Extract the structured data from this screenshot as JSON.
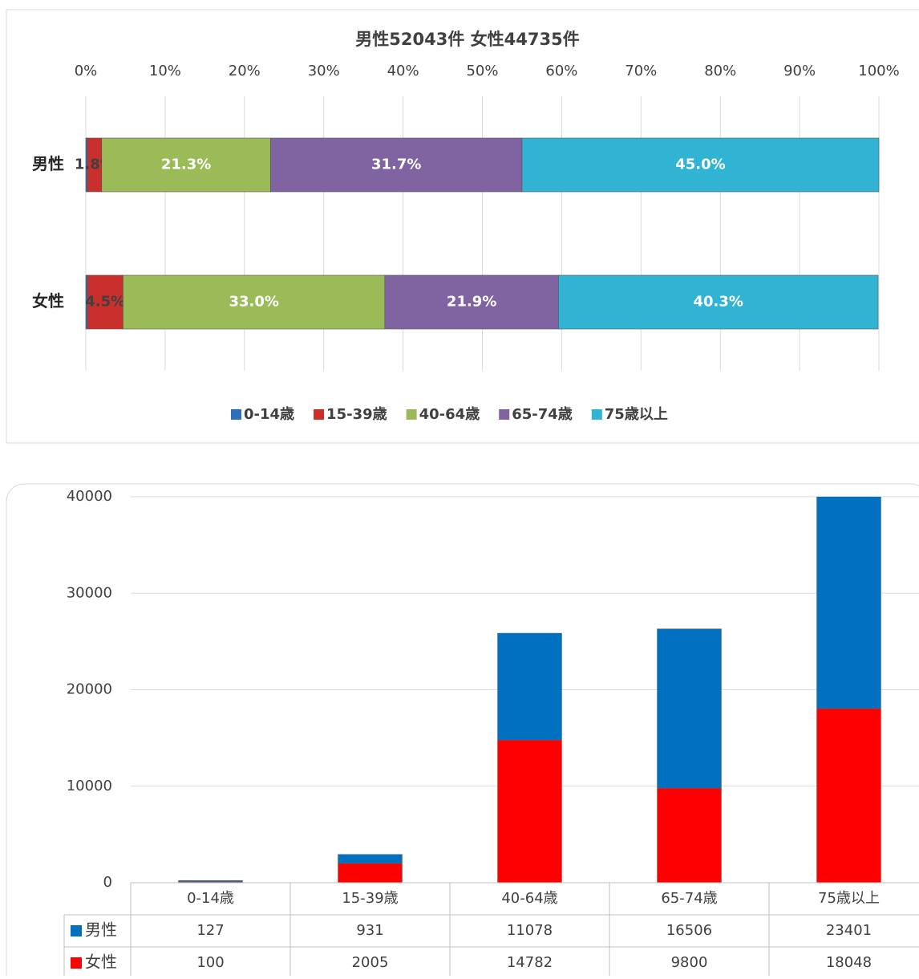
{
  "chart_data": [
    {
      "type": "bar",
      "orientation": "horizontal",
      "stacked": true,
      "title": "男性52043件 女性44735件",
      "categories": [
        "男性",
        "女性"
      ],
      "series": [
        {
          "name": "0-14歳",
          "color": "#2e6fb7",
          "values": [
            0.2,
            0.2
          ]
        },
        {
          "name": "15-39歳",
          "color": "#c9302c",
          "values": [
            1.8,
            4.5
          ],
          "value_labels": [
            "1.8%",
            "4.5%"
          ]
        },
        {
          "name": "40-64歳",
          "color": "#9bbb59",
          "values": [
            21.3,
            33.0
          ],
          "value_labels": [
            "21.3%",
            "33.0%"
          ]
        },
        {
          "name": "65-74歳",
          "color": "#8064a2",
          "values": [
            31.7,
            21.9
          ],
          "value_labels": [
            "31.7%",
            "21.9%"
          ]
        },
        {
          "name": "75歳以上",
          "color": "#31b3d3",
          "values": [
            45.0,
            40.3
          ],
          "value_labels": [
            "45.0%",
            "40.3%"
          ]
        }
      ],
      "xlim": [
        0,
        100
      ],
      "xticks": [
        {
          "value": 0,
          "label": "0%"
        },
        {
          "value": 10,
          "label": "10%"
        },
        {
          "value": 20,
          "label": "20%"
        },
        {
          "value": 30,
          "label": "30%"
        },
        {
          "value": 40,
          "label": "40%"
        },
        {
          "value": 50,
          "label": "50%"
        },
        {
          "value": 60,
          "label": "60%"
        },
        {
          "value": 70,
          "label": "70%"
        },
        {
          "value": 80,
          "label": "80%"
        },
        {
          "value": 90,
          "label": "90%"
        },
        {
          "value": 100,
          "label": "100%"
        }
      ],
      "grid": true,
      "legend": "bottom"
    },
    {
      "type": "bar",
      "orientation": "vertical",
      "stacked": true,
      "categories": [
        "0-14歳",
        "15-39歳",
        "40-64歳",
        "65-74歳",
        "75歳以上"
      ],
      "series": [
        {
          "name": "男性",
          "color": "#0070c0",
          "values": [
            127,
            931,
            11078,
            16506,
            23401
          ]
        },
        {
          "name": "女性",
          "color": "#ff0000",
          "values": [
            100,
            2005,
            14782,
            9800,
            18048
          ]
        }
      ],
      "stack_order": [
        1,
        0
      ],
      "ylim": [
        0,
        40000
      ],
      "yticks": [
        0,
        10000,
        20000,
        30000,
        40000
      ],
      "grid": true,
      "data_table": true
    }
  ]
}
